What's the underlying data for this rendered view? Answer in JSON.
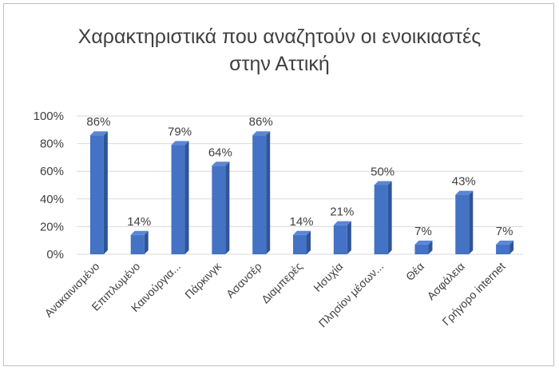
{
  "chart_data": {
    "type": "bar",
    "title_lines": [
      "Χαρακτηριστικά που αναζητούν οι ενοικιαστές",
      "στην Αττική"
    ],
    "categories": [
      "Ανακαινισμένο",
      "Επιπλωμένο",
      "Καινούργια...",
      "Πάρκινγκ",
      "Ασανσέρ",
      "Διαμπερές",
      "Ησυχία",
      "Πλησίον μέσων...",
      "Θέα",
      "Ασφάλεια",
      "Γρήγορο internet"
    ],
    "values": [
      86,
      14,
      79,
      64,
      86,
      14,
      21,
      50,
      7,
      43,
      7
    ],
    "data_labels": [
      "86%",
      "14%",
      "79%",
      "64%",
      "86%",
      "14%",
      "21%",
      "50%",
      "7%",
      "43%",
      "7%"
    ],
    "y_ticks": [
      0,
      20,
      40,
      60,
      80,
      100
    ],
    "y_tick_labels": [
      "0%",
      "20%",
      "40%",
      "60%",
      "80%",
      "100%"
    ],
    "ylim": [
      0,
      100
    ],
    "grid": true,
    "legend": "none",
    "bar_color": "#4472c4",
    "bar_side_color": "#2f5597",
    "bar_top_color": "#5b85d6"
  }
}
